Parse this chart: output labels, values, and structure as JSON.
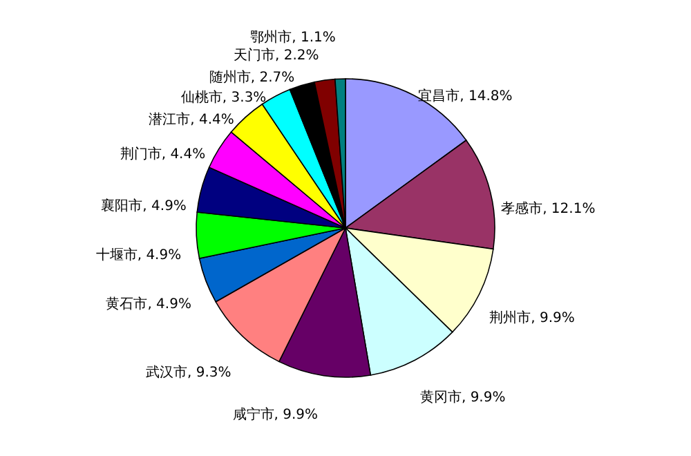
{
  "chart_data": {
    "type": "pie",
    "categories": [
      "宜昌市",
      "孝感市",
      "荆州市",
      "黄冈市",
      "咸宁市",
      "武汉市",
      "黄石市",
      "十堰市",
      "襄阳市",
      "荆门市",
      "潜江市",
      "仙桃市",
      "随州市",
      "天门市",
      "鄂州市"
    ],
    "values": [
      14.8,
      12.1,
      9.9,
      9.9,
      9.9,
      9.3,
      4.9,
      4.9,
      4.9,
      4.4,
      4.4,
      3.3,
      2.7,
      2.2,
      1.1
    ],
    "colors": [
      "#9999ff",
      "#993366",
      "#ffffcc",
      "#ccffff",
      "#660066",
      "#ff8080",
      "#0066cc",
      "#00ff00",
      "#000080",
      "#ff00ff",
      "#ffff00",
      "#00ffff",
      "#000000",
      "#800000",
      "#008080"
    ],
    "value_labels": [
      ", 14.8%",
      ", 12.1%",
      ", 9.9%",
      ", 9.9%",
      ", 9.9%",
      ", 9.3%",
      ", 4.9%",
      ", 4.9%",
      ", 4.9%",
      ", 4.4%",
      ", 4.4%",
      ", 3.3%",
      ", 2.7%",
      ", 2.2%",
      ", 1.1%"
    ],
    "legend": false
  }
}
